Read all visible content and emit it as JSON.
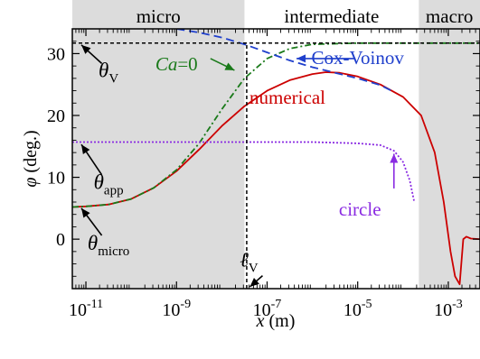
{
  "chart_data": {
    "type": "line",
    "x_scale": "log10",
    "xlabel": {
      "italic": "x",
      "rest": " (m)"
    },
    "ylabel": {
      "italic": "φ",
      "rest": " (deg.)"
    },
    "xlim": [
      -11.3,
      -2.3
    ],
    "ylim": [
      -8,
      34
    ],
    "x_ticks": [
      {
        "value": -11,
        "label": "10",
        "exp": "-11"
      },
      {
        "value": -9,
        "label": "10",
        "exp": "-9"
      },
      {
        "value": -7,
        "label": "10",
        "exp": "-7"
      },
      {
        "value": -5,
        "label": "10",
        "exp": "-5"
      },
      {
        "value": -3,
        "label": "10",
        "exp": "-3"
      }
    ],
    "y_ticks": [
      {
        "value": 0,
        "label": "0"
      },
      {
        "value": 10,
        "label": "10"
      },
      {
        "value": 20,
        "label": "20"
      },
      {
        "value": 30,
        "label": "30"
      }
    ],
    "regions": [
      {
        "name": "micro",
        "x0": -11.3,
        "x1": -7.5,
        "shaded": true,
        "color": "#dcdcdc"
      },
      {
        "name": "intermediate",
        "x0": -7.5,
        "x1": -3.65,
        "shaded": false
      },
      {
        "name": "macro",
        "x0": -3.65,
        "x1": -2.3,
        "shaded": true,
        "color": "#dcdcdc"
      }
    ],
    "series": [
      {
        "name": "numerical",
        "color": "#cc0000",
        "dash": "none",
        "points": [
          [
            -11.3,
            5.2
          ],
          [
            -11,
            5.3
          ],
          [
            -10.5,
            5.6
          ],
          [
            -10,
            6.5
          ],
          [
            -9.5,
            8.3
          ],
          [
            -9,
            11
          ],
          [
            -8.5,
            14.5
          ],
          [
            -8,
            18.3
          ],
          [
            -7.5,
            21.5
          ],
          [
            -7,
            24
          ],
          [
            -6.5,
            25.7
          ],
          [
            -6,
            26.7
          ],
          [
            -5.7,
            27
          ],
          [
            -5.4,
            26.9
          ],
          [
            -5,
            26.3
          ],
          [
            -4.5,
            25
          ],
          [
            -4,
            23
          ],
          [
            -3.6,
            20
          ],
          [
            -3.3,
            14
          ],
          [
            -3.1,
            6
          ],
          [
            -2.95,
            -2
          ],
          [
            -2.85,
            -6
          ],
          [
            -2.75,
            -7.3
          ],
          [
            -2.67,
            0
          ],
          [
            -2.6,
            0.4
          ],
          [
            -2.5,
            0.1
          ],
          [
            -2.3,
            0
          ]
        ]
      },
      {
        "name": "Ca=0",
        "color": "#1a7a1a",
        "dash": "7,3,2,3",
        "points": [
          [
            -11.3,
            5.2
          ],
          [
            -11,
            5.3
          ],
          [
            -10.5,
            5.6
          ],
          [
            -10,
            6.5
          ],
          [
            -9.5,
            8.3
          ],
          [
            -9,
            11.2
          ],
          [
            -8.5,
            15.5
          ],
          [
            -8,
            21
          ],
          [
            -7.5,
            26
          ],
          [
            -7,
            29.2
          ],
          [
            -6.5,
            30.8
          ],
          [
            -6,
            31.5
          ],
          [
            -5,
            31.7
          ],
          [
            -4,
            31.7
          ],
          [
            -2.3,
            31.7
          ]
        ]
      },
      {
        "name": "Cox-Voinov",
        "color": "#1f3fcc",
        "dash": "9,5",
        "points": [
          [
            -9,
            34
          ],
          [
            -8.5,
            33.4
          ],
          [
            -8,
            32.6
          ],
          [
            -7.5,
            31.5
          ],
          [
            -7,
            30.2
          ],
          [
            -6.5,
            28.9
          ],
          [
            -6,
            27.8
          ],
          [
            -5.5,
            26.9
          ],
          [
            -5,
            26
          ],
          [
            -4.5,
            24.9
          ],
          [
            -4.25,
            24
          ]
        ]
      },
      {
        "name": "circle",
        "color": "#8a2be2",
        "dash": "2,2",
        "points": [
          [
            -11.3,
            15.7
          ],
          [
            -10,
            15.7
          ],
          [
            -8,
            15.7
          ],
          [
            -6,
            15.7
          ],
          [
            -5,
            15.5
          ],
          [
            -4.5,
            15.2
          ],
          [
            -4.2,
            14.3
          ],
          [
            -4,
            12.5
          ],
          [
            -3.85,
            9.5
          ],
          [
            -3.75,
            6
          ]
        ]
      }
    ],
    "reference_lines": [
      {
        "name": "theta_V",
        "y": 31.7,
        "x_from": -11.3,
        "x_to": -2.3,
        "color": "#000000",
        "dash": "4,3"
      },
      {
        "name": "ell_V",
        "x": -7.45,
        "y_from": -8,
        "y_to": 31.7,
        "color": "#000000",
        "dash": "4,3"
      }
    ],
    "annotations": [
      {
        "id": "theta-v",
        "base": "θ",
        "sub": "V",
        "color": "#000000",
        "arrow_color": "#000000",
        "text_xy": [
          -10.5,
          26.2
        ],
        "arrow_from": [
          -10.65,
          28.4
        ],
        "arrow_to": [
          -11.1,
          31.4
        ]
      },
      {
        "id": "theta-app",
        "base": "θ",
        "sub": "app",
        "color": "#000000",
        "arrow_color": "#000000",
        "text_xy": [
          -10.5,
          8.1
        ],
        "arrow_from": [
          -10.65,
          10.4
        ],
        "arrow_to": [
          -11.1,
          15.3
        ]
      },
      {
        "id": "theta-micro",
        "base": "θ",
        "sub": "micro",
        "color": "#000000",
        "arrow_color": "#000000",
        "text_xy": [
          -10.5,
          -1.7
        ],
        "arrow_from": [
          -10.65,
          0.6
        ],
        "arrow_to": [
          -11.1,
          5.0
        ]
      },
      {
        "id": "ell-v",
        "base": "ℓ",
        "sub": "V",
        "color": "#000000",
        "arrow_color": "#000000",
        "text_xy": [
          -7.4,
          -4.4
        ],
        "arrow_from": [
          -7.1,
          -5.9
        ],
        "arrow_to": [
          -7.38,
          -7.7
        ]
      },
      {
        "id": "ca-zero",
        "italic": "Ca",
        "rest": "=0",
        "color": "#1a7a1a",
        "arrow_color": "#1a7a1a",
        "text_xy": [
          -9.0,
          27.3
        ],
        "arrow_from": [
          -8.25,
          29.2
        ],
        "arrow_to": [
          -7.72,
          27.3
        ]
      },
      {
        "id": "cox-voinov",
        "text": "Cox-Voinov",
        "color": "#1f3fcc",
        "arrow_color": "#1f3fcc",
        "text_xy": [
          -5.0,
          28.3
        ],
        "arrow_from": [
          -5.05,
          29.2
        ],
        "arrow_to": [
          -6.35,
          29.2
        ]
      },
      {
        "id": "numerical",
        "text": "numerical",
        "color": "#cc0000",
        "text_xy": [
          -6.55,
          21.9
        ]
      },
      {
        "id": "circle",
        "text": "circle",
        "color": "#8a2be2",
        "arrow_color": "#8a2be2",
        "text_xy": [
          -4.95,
          3.8
        ],
        "arrow_from": [
          -4.2,
          8.2
        ],
        "arrow_to": [
          -4.2,
          13.8
        ]
      }
    ]
  }
}
